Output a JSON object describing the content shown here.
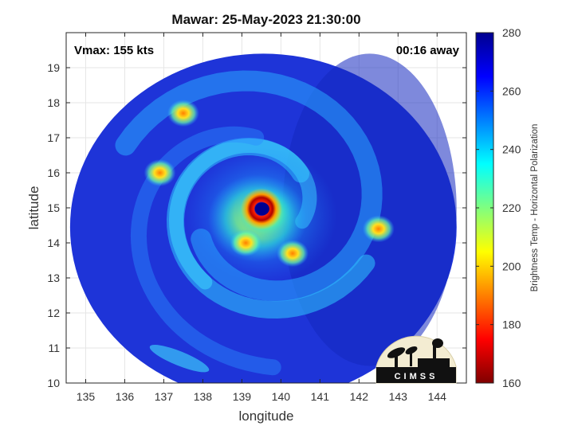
{
  "colors": {
    "background": "#ffffff",
    "low_stop": "#800000",
    "high_stop": "#00008f",
    "swath_base": "#1e34d8"
  },
  "chart_data": {
    "type": "heatmap",
    "title": "Mawar: 25-May-2023 21:30:00",
    "xlabel": "longitude",
    "ylabel": "latitude",
    "xlim": [
      134.5,
      144.75
    ],
    "ylim": [
      10,
      20
    ],
    "xticks": [
      135,
      136,
      137,
      138,
      139,
      140,
      141,
      142,
      143,
      144
    ],
    "yticks": [
      10,
      11,
      12,
      13,
      14,
      15,
      16,
      17,
      18,
      19
    ],
    "grid": true,
    "colormap": "jet",
    "colorbar": {
      "label": "Brightness Temp - Horizontal Polarization",
      "range": [
        160,
        280
      ],
      "ticks": [
        160,
        180,
        200,
        220,
        240,
        260,
        280
      ],
      "position": "right"
    },
    "annotations": {
      "left": "Vmax: 155 kts",
      "right": "00:16 away"
    },
    "storm_center": {
      "lon": 139.5,
      "lat": 14.97
    },
    "swath": {
      "center_lon": 139.55,
      "center_lat": 14.45,
      "radius_deg": 4.95
    },
    "features": [
      {
        "name": "eye",
        "lon": 139.5,
        "lat": 14.97,
        "tb": 265
      },
      {
        "name": "eyewall",
        "lon": 139.5,
        "lat": 14.97,
        "tb": 165
      },
      {
        "name": "cell",
        "lon": 137.5,
        "lat": 17.7,
        "tb": 215
      },
      {
        "name": "cell",
        "lon": 136.9,
        "lat": 16.0,
        "tb": 200
      },
      {
        "name": "cell",
        "lon": 139.1,
        "lat": 14.0,
        "tb": 195
      },
      {
        "name": "cell",
        "lon": 140.3,
        "lat": 13.7,
        "tb": 200
      },
      {
        "name": "cell",
        "lon": 142.5,
        "lat": 14.4,
        "tb": 210
      }
    ],
    "logo": "CIMSS"
  }
}
